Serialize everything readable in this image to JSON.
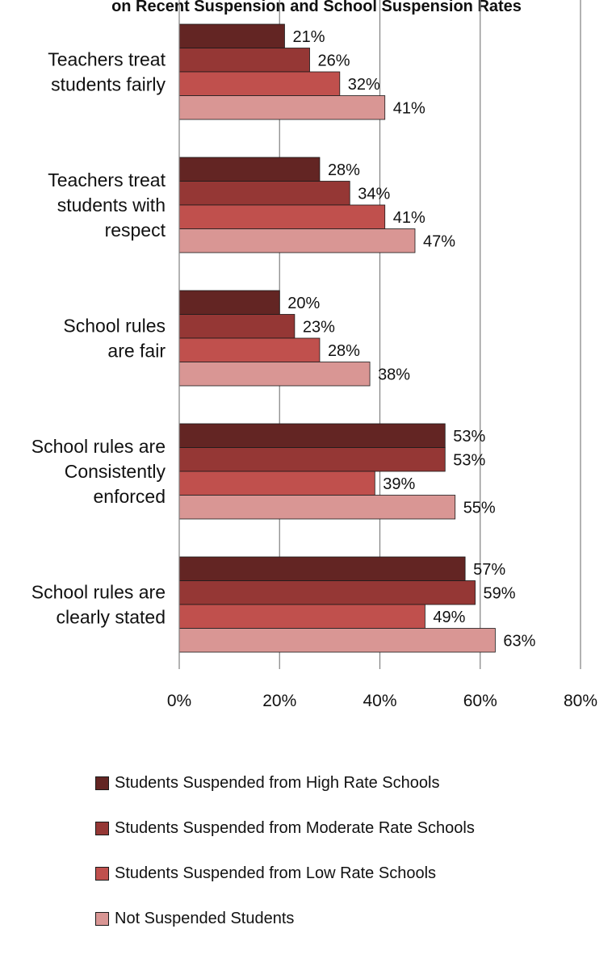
{
  "chart_data": {
    "type": "bar",
    "orientation": "horizontal",
    "title": "on Recent Suspension and School Suspension Rates",
    "categories": [
      [
        "Teachers treat",
        "students fairly"
      ],
      [
        "Teachers treat",
        "students with",
        "respect"
      ],
      [
        "School rules",
        "are fair"
      ],
      [
        "School rules are",
        "Consistently",
        "enforced"
      ],
      [
        "School rules are",
        "clearly stated"
      ]
    ],
    "series": [
      {
        "name": "Students Suspended from High Rate Schools",
        "color": "#632523",
        "values": [
          21,
          28,
          20,
          53,
          57
        ],
        "labels": [
          "21%",
          "28%",
          "20%",
          "53%",
          "57%"
        ]
      },
      {
        "name": "Students Suspended from Moderate Rate Schools",
        "color": "#953735",
        "values": [
          26,
          34,
          23,
          53,
          59
        ],
        "labels": [
          "26%",
          "34%",
          "23%",
          "53%",
          "59%"
        ]
      },
      {
        "name": "Students Suspended from Low Rate Schools",
        "color": "#C0504D",
        "values": [
          32,
          41,
          28,
          39,
          49
        ],
        "labels": [
          "32%",
          "41%",
          "28%",
          "39%",
          "49%"
        ]
      },
      {
        "name": "Not Suspended Students",
        "color": "#D99694",
        "values": [
          41,
          47,
          38,
          55,
          63
        ],
        "labels": [
          "41%",
          "47%",
          "38%",
          "55%",
          "63%"
        ]
      }
    ],
    "xlim": [
      0,
      80
    ],
    "xticks": [
      0,
      20,
      40,
      60,
      80
    ],
    "xtick_labels": [
      "0%",
      "20%",
      "40%",
      "60%",
      "80%"
    ],
    "grid": true,
    "legend_position": "bottom"
  }
}
